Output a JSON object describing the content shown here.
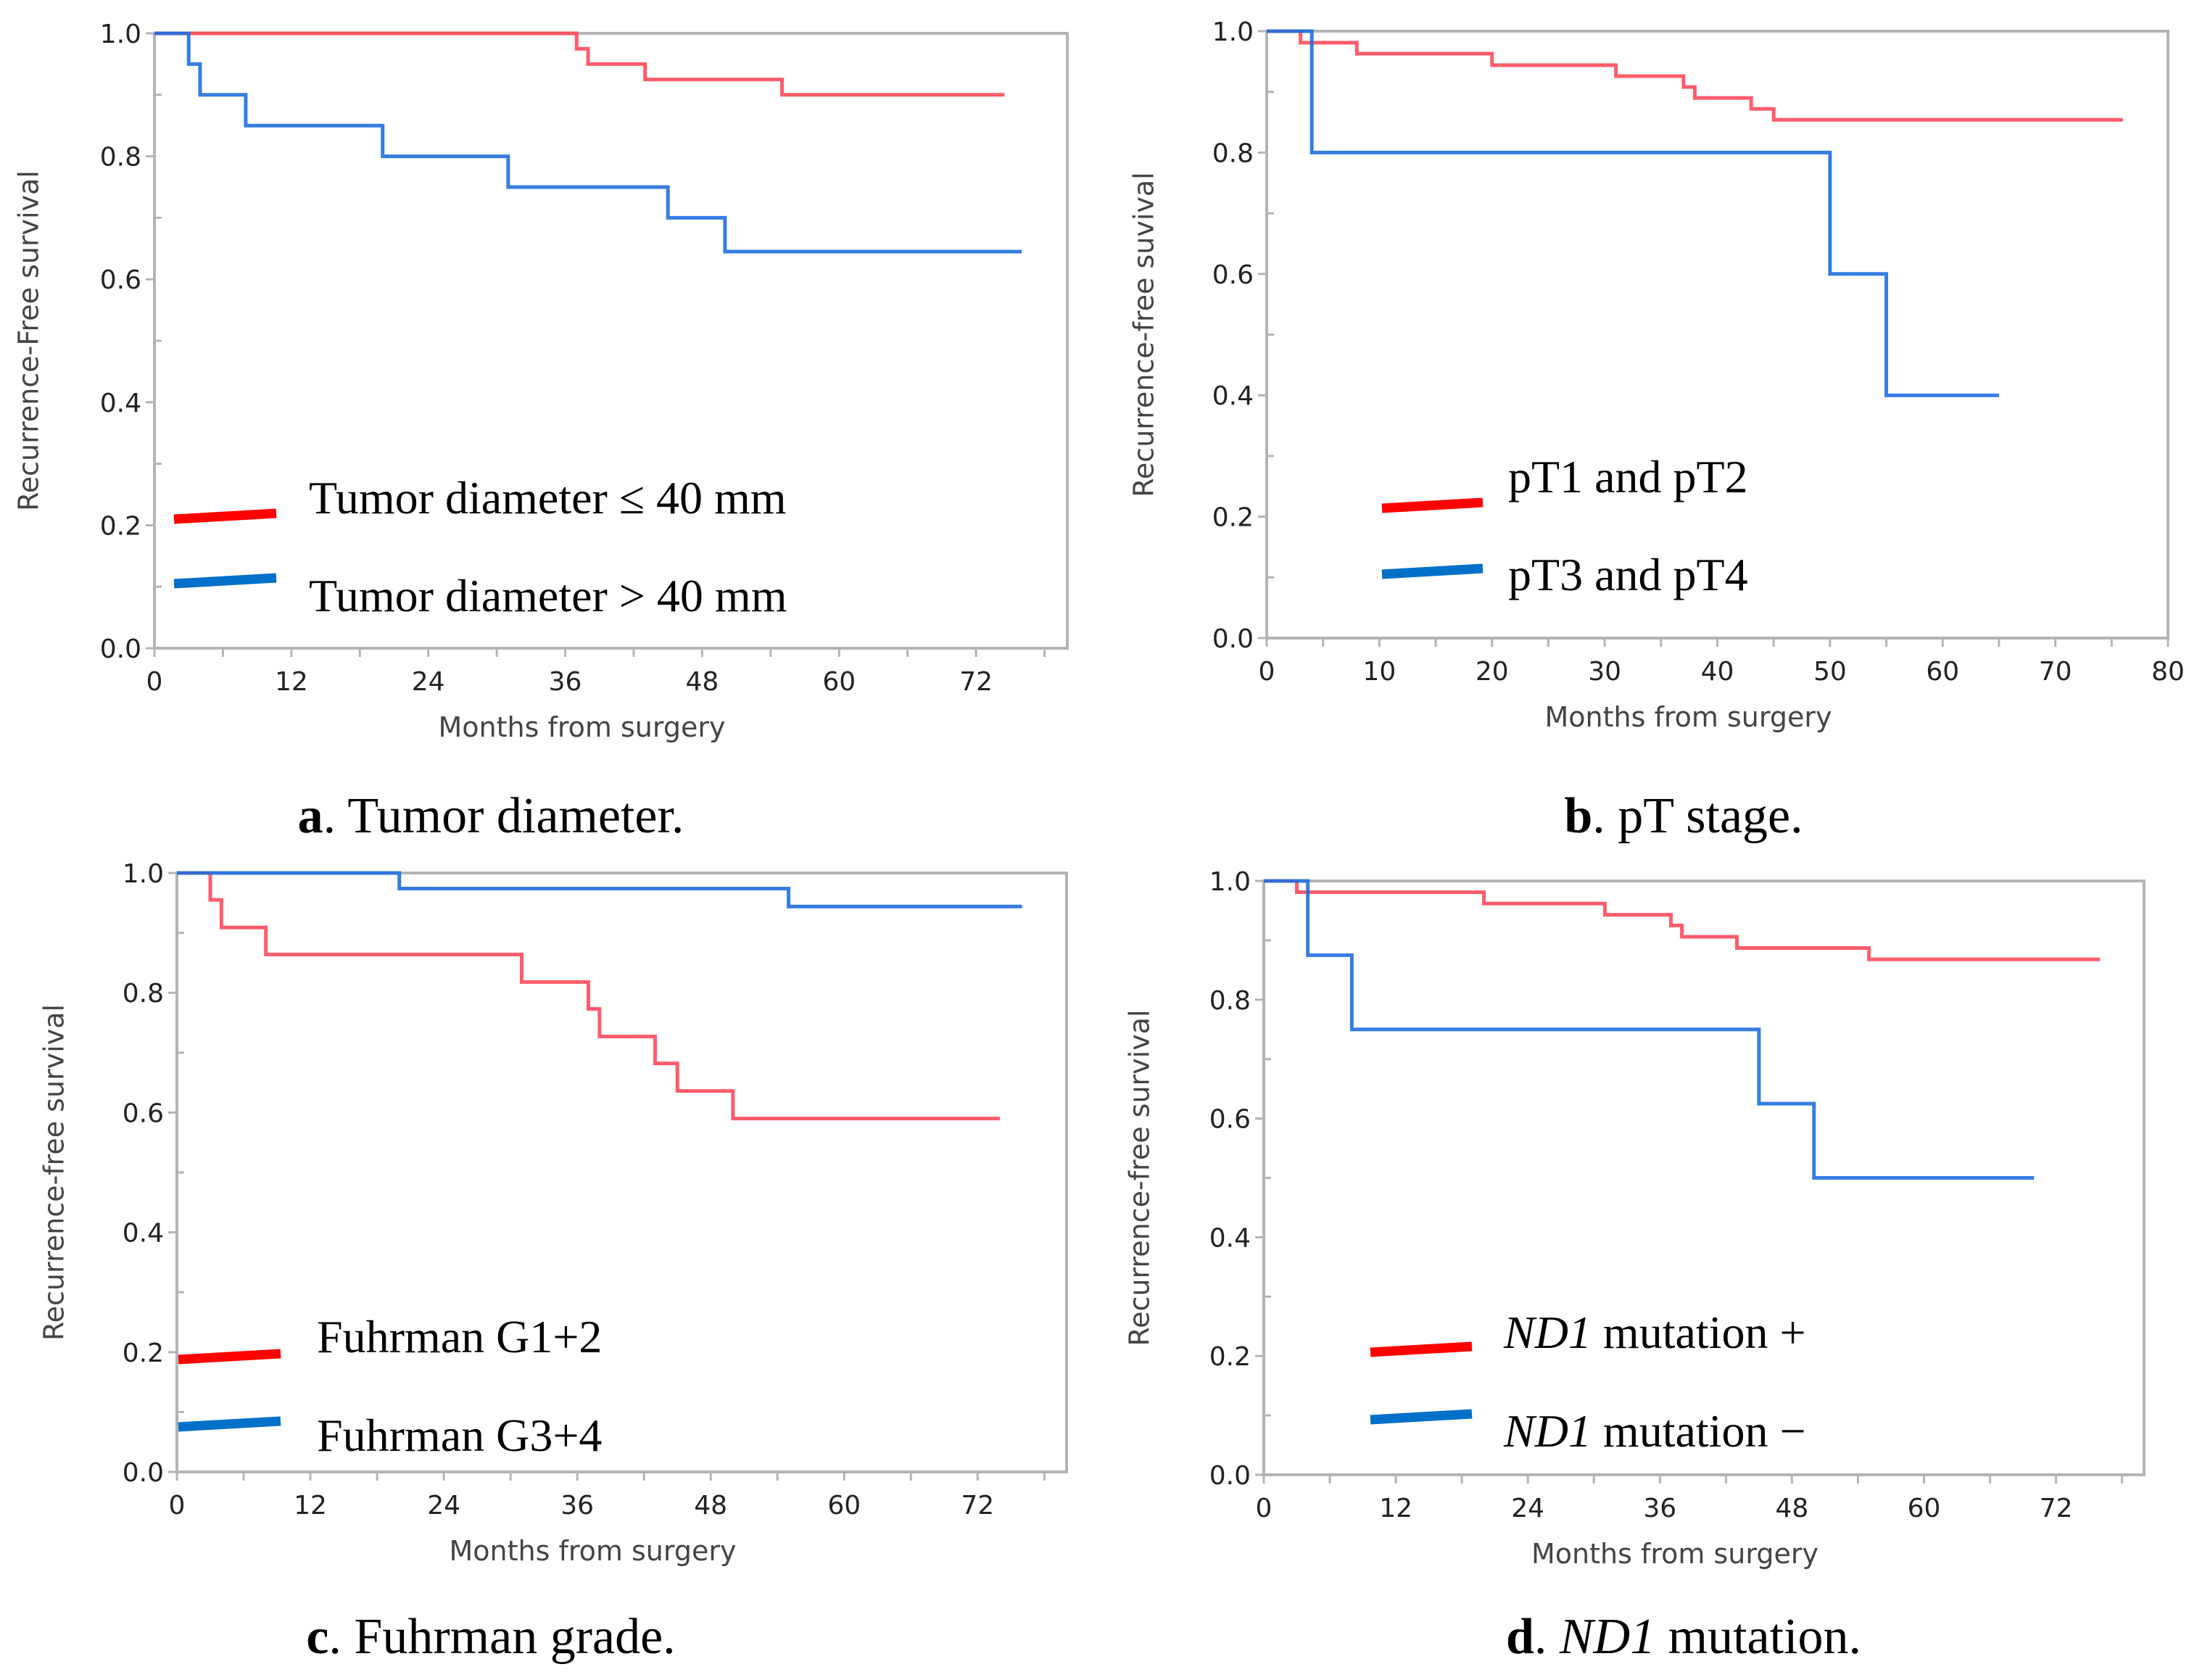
{
  "colors": {
    "red": "#ff4a5a",
    "blue": "#1f6fe0",
    "legend_red": "#ff0000",
    "legend_blue": "#0070c8",
    "frame": "#b4b4b4"
  },
  "chart_data": [
    {
      "type": "line",
      "panel": "a",
      "caption": {
        "letter": "a",
        "text": ". Tumor diameter."
      },
      "xlabel": "Months from surgery",
      "ylabel": "Recurrence-Free survival",
      "xlim": [
        0,
        80
      ],
      "ylim": [
        0,
        1
      ],
      "xticks": [
        "0",
        "12",
        "24",
        "36",
        "48",
        "60",
        "72"
      ],
      "xtick_values": [
        0,
        12,
        24,
        36,
        48,
        60,
        72
      ],
      "yticks": [
        "0.0",
        "0.2",
        "0.4",
        "0.6",
        "0.8",
        "1.0"
      ],
      "series": [
        {
          "name": "Tumor diameter ≤ 40 mm",
          "italic": "",
          "label": "Tumor diameter ≤ 40 mm",
          "color": "red",
          "steps": [
            [
              0,
              1.0
            ],
            [
              37,
              0.975
            ],
            [
              38,
              0.95
            ],
            [
              43,
              0.925
            ],
            [
              55,
              0.9
            ]
          ],
          "end": 74.5
        },
        {
          "name": "Tumor diameter > 40 mm",
          "italic": "",
          "label": "Tumor diameter > 40 mm",
          "color": "blue",
          "steps": [
            [
              0,
              1.0
            ],
            [
              3,
              0.95
            ],
            [
              4,
              0.9
            ],
            [
              8,
              0.85
            ],
            [
              20,
              0.8
            ],
            [
              31,
              0.75
            ],
            [
              45,
              0.7
            ],
            [
              50,
              0.645
            ]
          ],
          "end": 76
        }
      ]
    },
    {
      "type": "line",
      "panel": "b",
      "caption": {
        "letter": "b",
        "text": ". pT stage."
      },
      "xlabel": "Months from surgery",
      "ylabel": "Recurrence-free suvival",
      "xlim": [
        0,
        80
      ],
      "ylim": [
        0,
        1
      ],
      "xticks": [
        "0",
        "10",
        "20",
        "30",
        "40",
        "50",
        "60",
        "70",
        "80"
      ],
      "xtick_values": [
        0,
        10,
        20,
        30,
        40,
        50,
        60,
        70,
        80
      ],
      "yticks": [
        "0.0",
        "0.2",
        "0.4",
        "0.6",
        "0.8",
        "1.0"
      ],
      "series": [
        {
          "name": "pT1 and pT2",
          "italic": "",
          "label": "pT1 and pT2",
          "color": "red",
          "steps": [
            [
              0,
              1.0
            ],
            [
              3,
              0.981
            ],
            [
              8,
              0.963
            ],
            [
              20,
              0.944
            ],
            [
              31,
              0.926
            ],
            [
              37,
              0.908
            ],
            [
              38,
              0.89
            ],
            [
              43,
              0.872
            ],
            [
              45,
              0.854
            ]
          ],
          "end": 76
        },
        {
          "name": "pT3 and pT4",
          "italic": "",
          "label": "pT3 and pT4",
          "color": "blue",
          "steps": [
            [
              0,
              1.0
            ],
            [
              4,
              0.8
            ],
            [
              50,
              0.6
            ],
            [
              55,
              0.4
            ]
          ],
          "end": 65
        }
      ]
    },
    {
      "type": "line",
      "panel": "c",
      "caption": {
        "letter": "c",
        "text": ". Fuhrman grade."
      },
      "xlabel": "Months from surgery",
      "ylabel": "Recurrence-free survival",
      "xlim": [
        0,
        80
      ],
      "ylim": [
        0,
        1
      ],
      "xticks": [
        "0",
        "12",
        "24",
        "36",
        "48",
        "60",
        "72"
      ],
      "xtick_values": [
        0,
        12,
        24,
        36,
        48,
        60,
        72
      ],
      "yticks": [
        "0.0",
        "0.2",
        "0.4",
        "0.6",
        "0.8",
        "1.0"
      ],
      "series": [
        {
          "name": "Fuhrman G1+2",
          "italic": "",
          "label": "Fuhrman G1+2",
          "color": "red",
          "steps": [
            [
              0,
              1.0
            ],
            [
              3,
              0.955
            ],
            [
              4,
              0.909
            ],
            [
              8,
              0.864
            ],
            [
              31,
              0.818
            ],
            [
              37,
              0.773
            ],
            [
              38,
              0.727
            ],
            [
              43,
              0.682
            ],
            [
              45,
              0.636
            ],
            [
              50,
              0.59
            ]
          ],
          "end": 74
        },
        {
          "name": "Fuhrman G3+4",
          "italic": "",
          "label": "Fuhrman G3+4",
          "color": "blue",
          "steps": [
            [
              0,
              1.0
            ],
            [
              20,
              0.974
            ],
            [
              55,
              0.944
            ]
          ],
          "end": 76
        }
      ]
    },
    {
      "type": "line",
      "panel": "d",
      "caption": {
        "letter": "d",
        "italic": "ND1",
        "text": " mutation."
      },
      "xlabel": "Months from surgery",
      "ylabel": "Recurrence-free survival",
      "xlim": [
        0,
        80
      ],
      "ylim": [
        0,
        1
      ],
      "xticks": [
        "0",
        "12",
        "24",
        "36",
        "48",
        "60",
        "72"
      ],
      "xtick_values": [
        0,
        12,
        24,
        36,
        48,
        60,
        72
      ],
      "yticks": [
        "0.0",
        "0.2",
        "0.4",
        "0.6",
        "0.8",
        "1.0"
      ],
      "series": [
        {
          "name": "ND1 mutation +",
          "italic": "ND1",
          "label": " mutation +",
          "color": "red",
          "steps": [
            [
              0,
              1.0
            ],
            [
              3,
              0.981
            ],
            [
              20,
              0.962
            ],
            [
              31,
              0.943
            ],
            [
              37,
              0.925
            ],
            [
              38,
              0.906
            ],
            [
              43,
              0.887
            ],
            [
              55,
              0.868
            ]
          ],
          "end": 76
        },
        {
          "name": "ND1 mutation −",
          "italic": "ND1",
          "label": " mutation −",
          "color": "blue",
          "steps": [
            [
              0,
              1.0
            ],
            [
              4,
              0.875
            ],
            [
              8,
              0.75
            ],
            [
              45,
              0.625
            ],
            [
              50,
              0.5
            ]
          ],
          "end": 70
        }
      ]
    }
  ]
}
